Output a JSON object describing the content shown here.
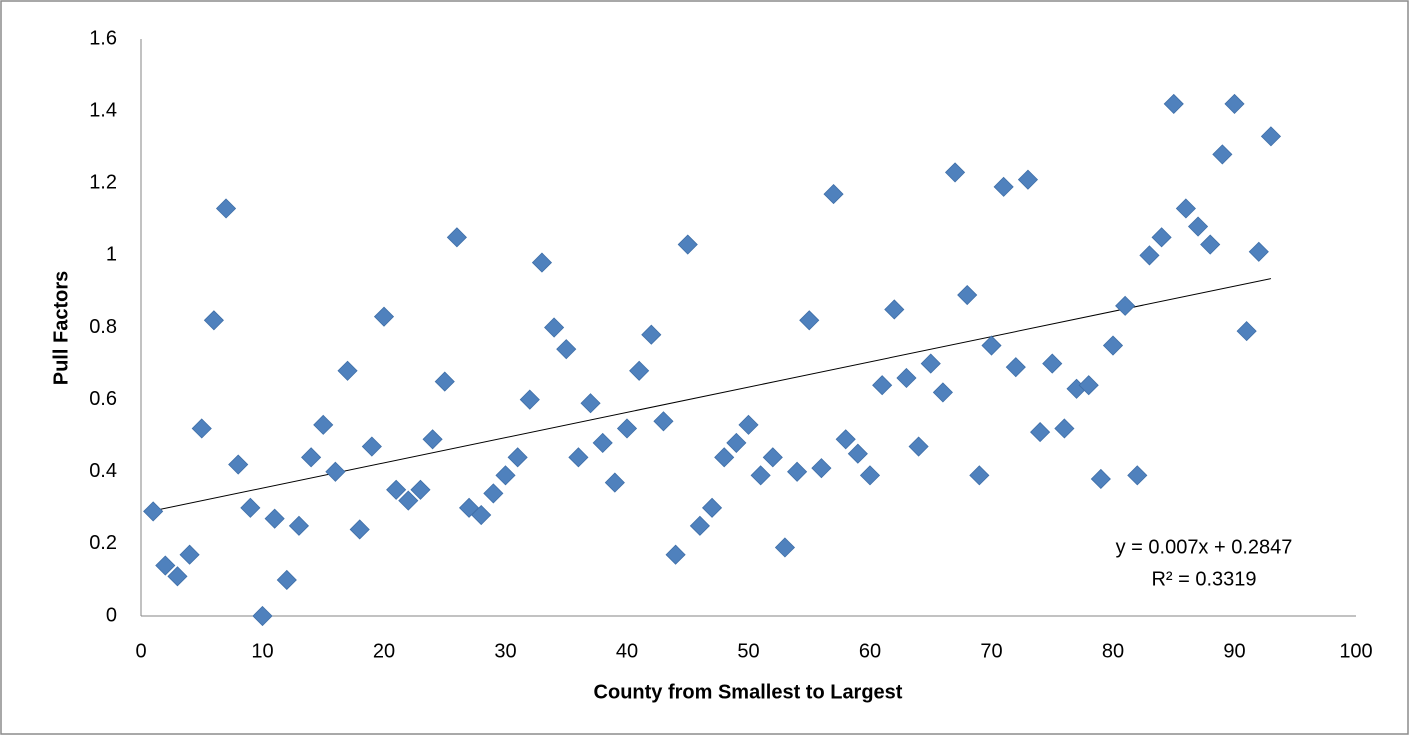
{
  "chart_data": {
    "type": "scatter",
    "x_label": "County from Smallest to Largest",
    "y_label": "Pull Factors",
    "x": [
      1,
      2,
      3,
      4,
      5,
      6,
      7,
      8,
      9,
      10,
      11,
      12,
      13,
      14,
      15,
      16,
      17,
      18,
      19,
      20,
      21,
      22,
      23,
      24,
      25,
      26,
      27,
      28,
      29,
      30,
      31,
      32,
      33,
      34,
      35,
      36,
      37,
      38,
      39,
      40,
      41,
      42,
      43,
      44,
      45,
      46,
      47,
      48,
      49,
      50,
      51,
      52,
      53,
      54,
      55,
      56,
      57,
      58,
      59,
      60,
      61,
      62,
      63,
      64,
      65,
      66,
      67,
      68,
      69,
      70,
      71,
      72,
      73,
      74,
      75,
      76,
      77,
      78,
      79,
      80,
      81,
      82,
      83,
      84,
      85,
      86,
      87,
      88,
      89,
      90,
      91,
      92,
      93
    ],
    "values": [
      0.29,
      0.14,
      0.11,
      0.17,
      0.52,
      0.82,
      1.13,
      0.42,
      0.3,
      0.0,
      0.27,
      0.1,
      0.25,
      0.44,
      0.53,
      0.4,
      0.68,
      0.24,
      0.47,
      0.83,
      0.35,
      0.32,
      0.35,
      0.49,
      0.65,
      1.05,
      0.3,
      0.28,
      0.34,
      0.39,
      0.44,
      0.6,
      0.98,
      0.8,
      0.74,
      0.44,
      0.59,
      0.48,
      0.37,
      0.52,
      0.68,
      0.78,
      0.54,
      0.17,
      1.03,
      0.25,
      0.3,
      0.44,
      0.48,
      0.53,
      0.39,
      0.44,
      0.19,
      0.4,
      0.82,
      0.41,
      1.17,
      0.49,
      0.45,
      0.39,
      0.64,
      0.85,
      0.66,
      0.47,
      0.7,
      0.62,
      1.23,
      0.89,
      0.39,
      0.75,
      1.19,
      0.69,
      1.21,
      0.51,
      0.7,
      0.52,
      0.63,
      0.64,
      0.38,
      0.75,
      0.86,
      0.39,
      1.0,
      1.05,
      1.42,
      1.13,
      1.08,
      1.03,
      1.28,
      1.42,
      0.79,
      1.01,
      1.33
    ],
    "color": "#4f81bd",
    "xlim": [
      0,
      100
    ],
    "xticks": [
      0,
      10,
      20,
      30,
      40,
      50,
      60,
      70,
      80,
      90,
      100
    ],
    "ylim": [
      0,
      1.6
    ],
    "yticks": [
      0,
      0.2,
      0.4,
      0.6,
      0.8,
      1,
      1.2,
      1.4,
      1.6
    ],
    "grid": false,
    "trendline": {
      "slope": 0.007,
      "intercept": 0.2847,
      "equation": "y = 0.007x + 0.2847",
      "r_squared_label": "R² = 0.3319"
    }
  }
}
